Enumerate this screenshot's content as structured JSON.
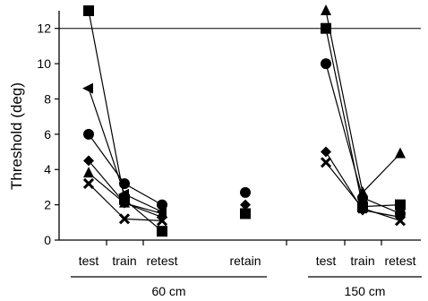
{
  "chart_data": {
    "type": "line",
    "ylabel": "Threshold (deg)",
    "ylim": [
      0,
      13
    ],
    "yticks": [
      0,
      2,
      4,
      6,
      8,
      10,
      12
    ],
    "reference_line": 12,
    "categories": [
      "test",
      "train",
      "retest",
      "retain",
      "test",
      "train",
      "retest"
    ],
    "groups": [
      {
        "label": "60 cm",
        "category_indices": [
          0,
          1,
          2,
          3
        ]
      },
      {
        "label": "150 cm",
        "category_indices": [
          4,
          5,
          6
        ]
      }
    ],
    "marker_color": "#000000",
    "series": [
      {
        "marker": "square",
        "values": [
          13.0,
          2.3,
          0.5,
          1.5,
          12.0,
          1.9,
          2.0
        ]
      },
      {
        "marker": "triangle-left",
        "values": [
          8.6,
          2.6,
          1.6,
          null,
          null,
          null,
          null
        ]
      },
      {
        "marker": "circle",
        "values": [
          6.0,
          3.2,
          2.0,
          2.7,
          10.0,
          2.4,
          1.5
        ]
      },
      {
        "marker": "diamond",
        "values": [
          4.5,
          2.1,
          1.3,
          2.0,
          5.0,
          1.7,
          1.3
        ]
      },
      {
        "marker": "triangle-up",
        "values": [
          3.8,
          2.1,
          1.5,
          null,
          13.0,
          2.7,
          4.9
        ]
      },
      {
        "marker": "cross",
        "values": [
          3.2,
          1.2,
          1.1,
          null,
          4.4,
          1.8,
          1.1
        ]
      }
    ]
  }
}
